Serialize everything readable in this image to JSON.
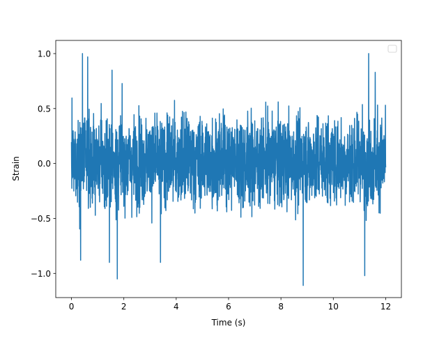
{
  "chart_data": {
    "type": "line",
    "xlabel": "Time (s)",
    "ylabel": "Strain",
    "xlim": [
      -0.6,
      12.6
    ],
    "ylim": [
      -1.22,
      1.12
    ],
    "xticks": [
      0,
      2,
      4,
      6,
      8,
      10,
      12
    ],
    "xtick_labels": [
      "0",
      "2",
      "4",
      "6",
      "8",
      "10",
      "12"
    ],
    "yticks": [
      -1.0,
      -0.5,
      0.0,
      0.5,
      1.0
    ],
    "ytick_labels": [
      "−1.0",
      "−0.5",
      "0.0",
      "0.5",
      "1.0"
    ],
    "grid": false,
    "legend": {
      "placement": "top-right",
      "entries": []
    },
    "series": [
      {
        "color": "#1f77b4",
        "x_start": 0.0,
        "x_end": 12.0,
        "typical_band": [
          -0.45,
          0.5
        ],
        "notable_peaks": [
          {
            "x": 0.42,
            "y": 1.0
          },
          {
            "x": 0.62,
            "y": 0.97
          },
          {
            "x": 1.55,
            "y": 0.85
          },
          {
            "x": 11.35,
            "y": 1.0
          },
          {
            "x": 11.6,
            "y": 0.83
          }
        ],
        "notable_troughs": [
          {
            "x": 0.35,
            "y": -0.88
          },
          {
            "x": 1.75,
            "y": -1.05
          },
          {
            "x": 1.45,
            "y": -0.9
          },
          {
            "x": 3.4,
            "y": -0.9
          },
          {
            "x": 8.85,
            "y": -1.11
          },
          {
            "x": 11.2,
            "y": -1.02
          }
        ]
      }
    ]
  }
}
